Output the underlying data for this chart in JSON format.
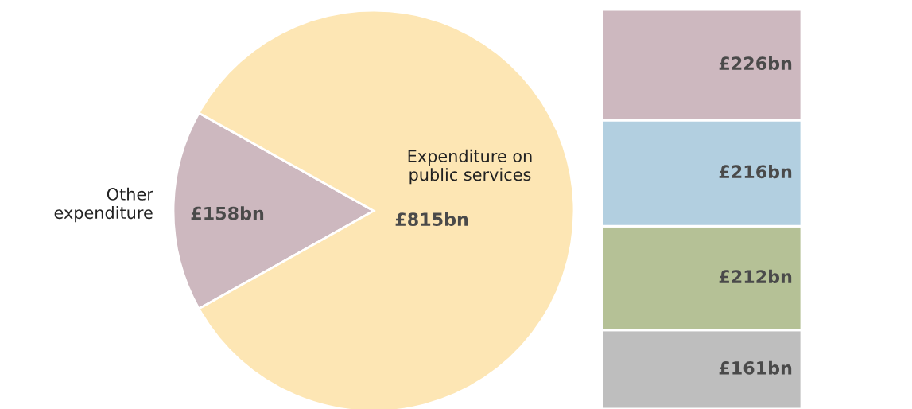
{
  "chart_data": [
    {
      "type": "pie",
      "categories": [
        "Other expenditure",
        "Expenditure on public services"
      ],
      "values": [
        158,
        815
      ],
      "colors": [
        "#cdb8bf",
        "#fde6b4"
      ],
      "value_labels": [
        "£158bn",
        "£815bn"
      ]
    },
    {
      "type": "bar",
      "stacked": true,
      "categories": [
        null
      ],
      "series": [
        {
          "color": "#bebebe",
          "values": [
            161
          ],
          "value_labels": [
            "£161bn"
          ]
        },
        {
          "color": "#b5c196",
          "values": [
            212
          ],
          "value_labels": [
            "£212bn"
          ]
        },
        {
          "color": "#b2cfe0",
          "values": [
            216
          ],
          "value_labels": [
            "£216bn"
          ]
        },
        {
          "color": "#cdb8bf",
          "values": [
            226
          ],
          "value_labels": [
            "£226bn"
          ]
        }
      ]
    }
  ]
}
